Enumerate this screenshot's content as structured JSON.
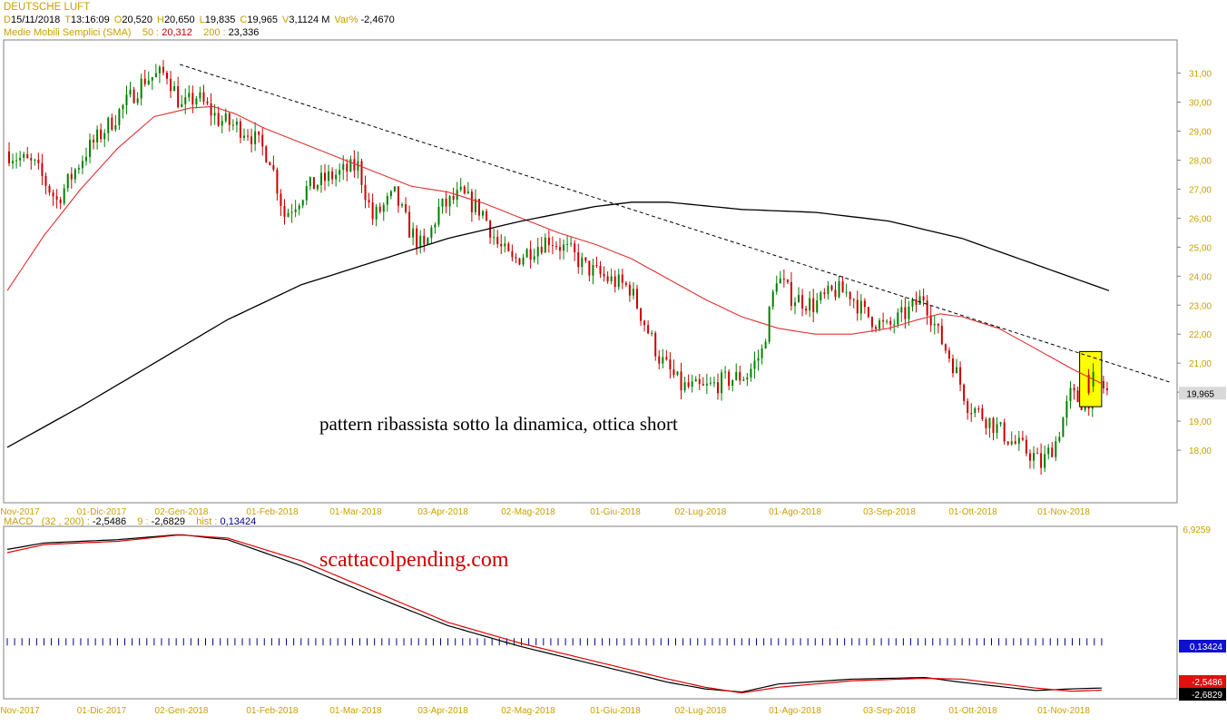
{
  "header": {
    "title": "DEUTSCHE LUFT",
    "ohlc": [
      {
        "k": "D",
        "v": "15/11/2018"
      },
      {
        "k": "T",
        "v": "13:16:09"
      },
      {
        "k": "O",
        "v": "20,520"
      },
      {
        "k": "H",
        "v": "20,650"
      },
      {
        "k": "L",
        "v": "19,835"
      },
      {
        "k": "C",
        "v": "19,965"
      },
      {
        "k": "V",
        "v": "3,1124 M"
      },
      {
        "k": "Var%",
        "v": "-2,4670"
      }
    ],
    "sma_label": "Medie Mobili Semplici (SMA)",
    "sma_50_label": "50 :",
    "sma_50_value": "20,312",
    "sma_200_label": "200 :",
    "sma_200_value": "23,336"
  },
  "macd_header": {
    "label": "MACD",
    "params": "(32 , 200) :",
    "macd_value": "-2,5486",
    "signal_label": "9 :",
    "signal_value": "-2,6829",
    "hist_label": "hist :",
    "hist_value": "0,13424"
  },
  "annotations": {
    "pattern_note": "pattern ribassista sotto la dinamica, ottica short",
    "watermark": "scattacolpending.com"
  },
  "colors": {
    "bull": "#008000",
    "bear": "#cc0000",
    "sma50": "#e03030",
    "sma200": "#000000",
    "macd_line": "#000000",
    "signal_line": "#e00000",
    "hist": "#00008b",
    "highlight": "#ffff00",
    "axis_text": "#c8a000"
  },
  "chart_data": [
    {
      "type": "candlestick",
      "xlabel": "",
      "ylabel": "",
      "ylim": [
        16.5,
        31.8
      ],
      "y_ticks": [
        "18,00",
        "19,00",
        "20,00",
        "21,00",
        "22,00",
        "23,00",
        "24,00",
        "25,00",
        "26,00",
        "27,00",
        "28,00",
        "29,00",
        "30,00",
        "31,00"
      ],
      "last_price_label": "19,965",
      "x_tick_labels": [
        "Nov-2017",
        "01-Dic-2017",
        "02-Gen-2018",
        "01-Feb-2018",
        "01-Mar-2018",
        "03-Apr-2018",
        "02-Mag-2018",
        "01-Giu-2018",
        "02-Lug-2018",
        "01-Ago-2018",
        "03-Sep-2018",
        "01-Ott-2018",
        "01-Nov-2018"
      ],
      "price_path": [
        [
          0,
          28.3
        ],
        [
          8,
          27.8
        ],
        [
          14,
          26.6
        ],
        [
          22,
          28.3
        ],
        [
          30,
          29.5
        ],
        [
          38,
          30.8
        ],
        [
          44,
          31.0
        ],
        [
          48,
          29.8
        ],
        [
          52,
          30.2
        ],
        [
          58,
          29.4
        ],
        [
          66,
          29.0
        ],
        [
          72,
          28.1
        ],
        [
          76,
          26.1
        ],
        [
          82,
          27.0
        ],
        [
          88,
          27.4
        ],
        [
          96,
          27.8
        ],
        [
          100,
          26.0
        ],
        [
          106,
          26.8
        ],
        [
          110,
          25.6
        ],
        [
          114,
          24.9
        ],
        [
          118,
          26.3
        ],
        [
          124,
          26.8
        ],
        [
          130,
          26.2
        ],
        [
          134,
          25.1
        ],
        [
          138,
          24.5
        ],
        [
          144,
          25.0
        ],
        [
          148,
          25.3
        ],
        [
          154,
          24.8
        ],
        [
          158,
          24.3
        ],
        [
          164,
          23.9
        ],
        [
          170,
          23.6
        ],
        [
          174,
          22.4
        ],
        [
          178,
          21.2
        ],
        [
          184,
          20.2
        ],
        [
          190,
          20.1
        ],
        [
          196,
          20.4
        ],
        [
          202,
          20.6
        ],
        [
          206,
          21.4
        ],
        [
          210,
          24.0
        ],
        [
          214,
          23.3
        ],
        [
          220,
          23.0
        ],
        [
          226,
          23.5
        ],
        [
          230,
          23.4
        ],
        [
          234,
          22.7
        ],
        [
          240,
          22.2
        ],
        [
          246,
          22.8
        ],
        [
          250,
          23.3
        ],
        [
          254,
          22.0
        ],
        [
          258,
          21.0
        ],
        [
          262,
          19.6
        ],
        [
          268,
          19.0
        ],
        [
          274,
          18.3
        ],
        [
          280,
          17.8
        ],
        [
          282,
          17.5
        ],
        [
          286,
          18.3
        ],
        [
          290,
          19.9
        ],
        [
          294,
          19.6
        ],
        [
          298,
          20.3
        ],
        [
          300,
          20.0
        ]
      ],
      "sma50": [
        [
          0,
          23.5
        ],
        [
          10,
          25.4
        ],
        [
          20,
          27.0
        ],
        [
          30,
          28.4
        ],
        [
          40,
          29.5
        ],
        [
          50,
          29.8
        ],
        [
          56,
          29.85
        ],
        [
          62,
          29.6
        ],
        [
          70,
          29.1
        ],
        [
          80,
          28.6
        ],
        [
          90,
          28.1
        ],
        [
          100,
          27.6
        ],
        [
          110,
          27.1
        ],
        [
          120,
          26.9
        ],
        [
          130,
          26.5
        ],
        [
          140,
          26.0
        ],
        [
          150,
          25.5
        ],
        [
          160,
          25.1
        ],
        [
          170,
          24.6
        ],
        [
          180,
          23.9
        ],
        [
          190,
          23.2
        ],
        [
          200,
          22.6
        ],
        [
          210,
          22.2
        ],
        [
          220,
          22.0
        ],
        [
          230,
          22.0
        ],
        [
          240,
          22.2
        ],
        [
          248,
          22.5
        ],
        [
          254,
          22.7
        ],
        [
          260,
          22.6
        ],
        [
          270,
          22.2
        ],
        [
          280,
          21.5
        ],
        [
          290,
          20.8
        ],
        [
          298,
          20.3
        ]
      ],
      "sma200": [
        [
          0,
          18.1
        ],
        [
          20,
          19.5
        ],
        [
          40,
          21.0
        ],
        [
          60,
          22.5
        ],
        [
          80,
          23.7
        ],
        [
          100,
          24.5
        ],
        [
          120,
          25.3
        ],
        [
          140,
          25.9
        ],
        [
          160,
          26.4
        ],
        [
          170,
          26.55
        ],
        [
          180,
          26.55
        ],
        [
          200,
          26.3
        ],
        [
          220,
          26.2
        ],
        [
          240,
          25.9
        ],
        [
          260,
          25.3
        ],
        [
          280,
          24.4
        ],
        [
          300,
          23.5
        ]
      ],
      "trendline": [
        [
          47,
          31.3
        ],
        [
          298,
          21.1
        ]
      ],
      "highlight_box": {
        "i0": 292,
        "i1": 297,
        "y0": 19.5,
        "y1": 21.4
      }
    },
    {
      "type": "line",
      "title": "MACD",
      "ylim": [
        -3.1,
        7.2
      ],
      "y_tick_labels": [
        "6,9259"
      ],
      "axis_value_labels": [
        "0,13424",
        "-2,5486",
        "-2,6829"
      ],
      "series": [
        {
          "name": "MACD",
          "points": [
            [
              0,
              6.0
            ],
            [
              10,
              6.4
            ],
            [
              30,
              6.6
            ],
            [
              47,
              6.92
            ],
            [
              60,
              6.6
            ],
            [
              80,
              5.0
            ],
            [
              100,
              3.1
            ],
            [
              120,
              1.3
            ],
            [
              140,
              0.0
            ],
            [
              160,
              -1.1
            ],
            [
              180,
              -2.2
            ],
            [
              190,
              -2.6
            ],
            [
              200,
              -2.8
            ],
            [
              210,
              -2.3
            ],
            [
              230,
              -2.0
            ],
            [
              250,
              -1.9
            ],
            [
              260,
              -2.2
            ],
            [
              280,
              -2.7
            ],
            [
              290,
              -2.6
            ],
            [
              298,
              -2.55
            ]
          ]
        },
        {
          "name": "9",
          "points": [
            [
              0,
              5.8
            ],
            [
              10,
              6.3
            ],
            [
              30,
              6.5
            ],
            [
              47,
              6.9
            ],
            [
              60,
              6.7
            ],
            [
              80,
              5.3
            ],
            [
              100,
              3.4
            ],
            [
              120,
              1.5
            ],
            [
              140,
              0.2
            ],
            [
              160,
              -0.9
            ],
            [
              180,
              -2.0
            ],
            [
              190,
              -2.5
            ],
            [
              200,
              -2.85
            ],
            [
              210,
              -2.5
            ],
            [
              230,
              -2.1
            ],
            [
              250,
              -1.95
            ],
            [
              260,
              -2.0
            ],
            [
              280,
              -2.55
            ],
            [
              290,
              -2.75
            ],
            [
              298,
              -2.68
            ]
          ]
        }
      ],
      "hist_values_approx": "small positive/negative bars around 0"
    }
  ]
}
